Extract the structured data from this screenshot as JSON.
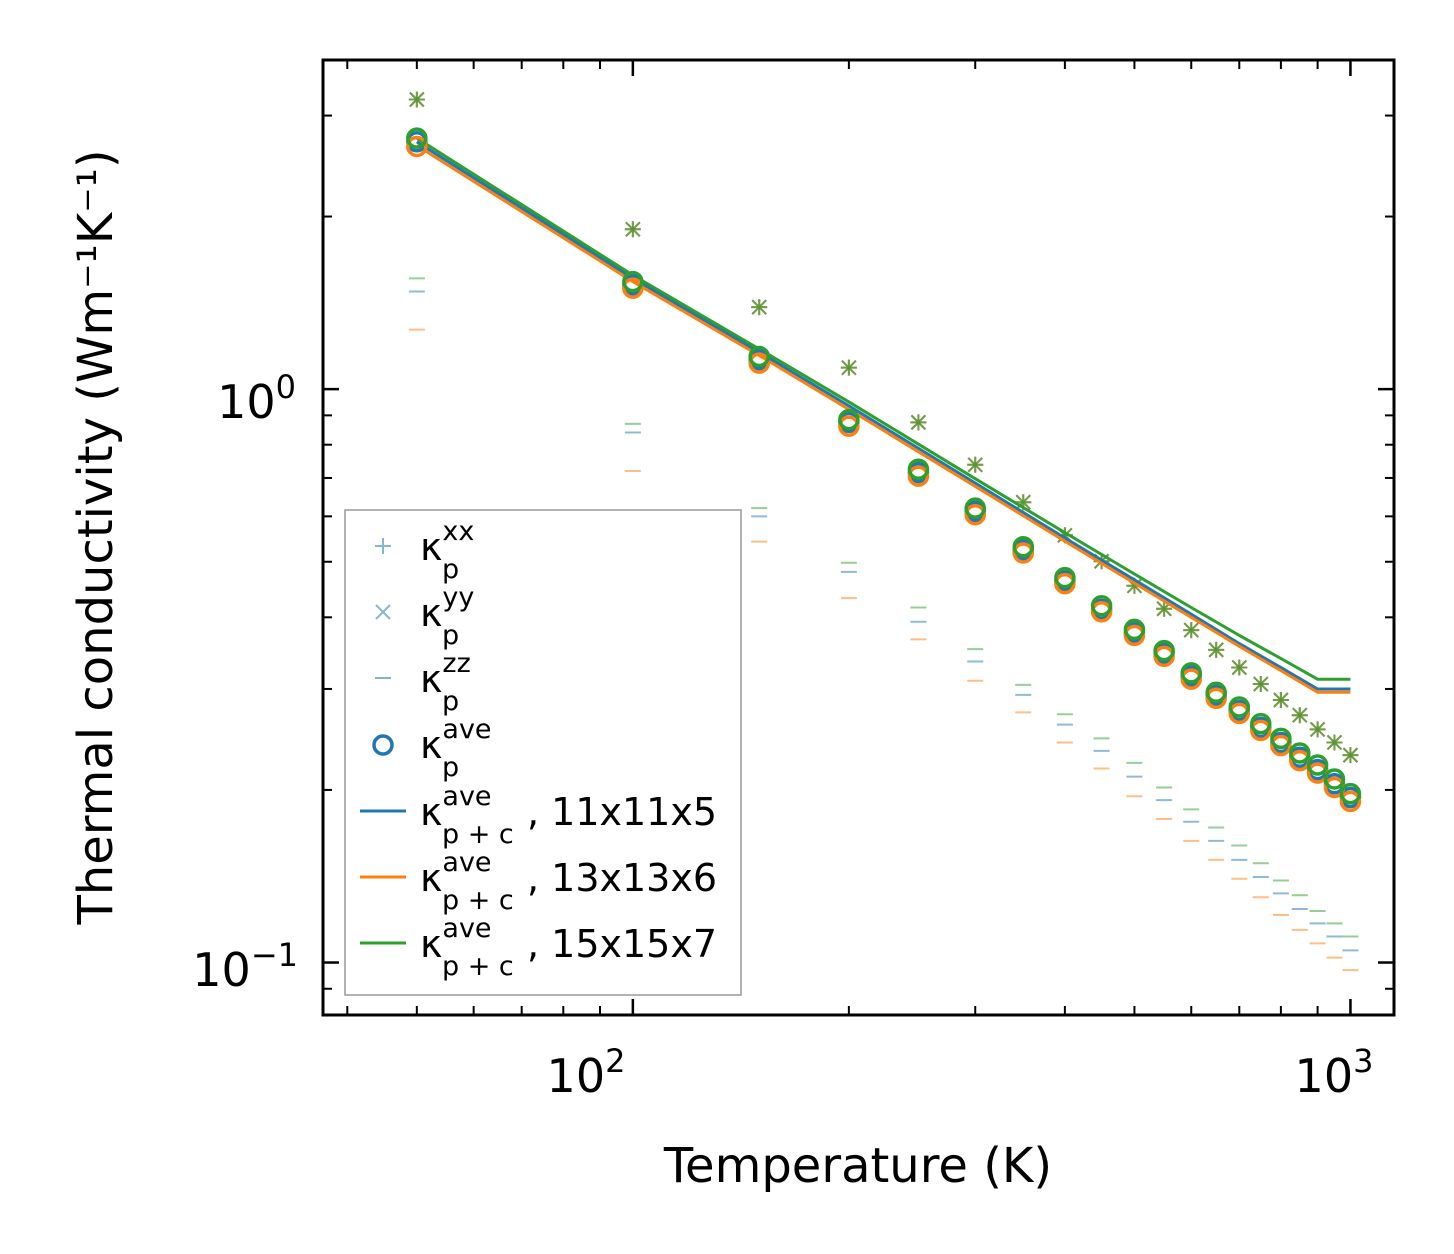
{
  "chart_data": {
    "type": "scatter",
    "title": "",
    "xlabel": "Temperature (K)",
    "ylabel": "Thermal conductivity (Wm⁻¹K⁻¹)",
    "xscale": "log",
    "yscale": "log",
    "xlim": [
      37,
      1150
    ],
    "ylim": [
      0.081,
      3.75
    ],
    "x_ticks": [
      {
        "base": "10",
        "exp": "2"
      },
      {
        "base": "10",
        "exp": "3"
      }
    ],
    "y_ticks": [
      {
        "base": "10",
        "exp": "0"
      },
      {
        "base": "10",
        "exp": "−1"
      }
    ],
    "legend_position": "lower-left",
    "colors": {
      "blue": "#1f77b4",
      "orange": "#ff7f0e",
      "green": "#2ca02c"
    },
    "x": [
      50,
      100,
      150,
      200,
      250,
      300,
      350,
      400,
      450,
      500,
      550,
      600,
      650,
      700,
      750,
      800,
      850,
      900,
      950,
      1000
    ],
    "kappa_p_xx": [
      3.2,
      1.9,
      1.39,
      1.09,
      0.875,
      0.738,
      0.635,
      0.556,
      0.501,
      0.454,
      0.414,
      0.38,
      0.351,
      0.327,
      0.306,
      0.287,
      0.27,
      0.255,
      0.242,
      0.23
    ],
    "kappa_p_zz": {
      "blue": [
        1.48,
        0.84,
        0.6,
        0.48,
        0.393,
        0.335,
        0.293,
        0.26,
        0.234,
        0.211,
        0.192,
        0.176,
        0.163,
        0.151,
        0.141,
        0.132,
        0.124,
        0.117,
        0.111,
        0.105
      ],
      "orange": [
        1.27,
        0.72,
        0.542,
        0.432,
        0.366,
        0.31,
        0.273,
        0.242,
        0.218,
        0.195,
        0.178,
        0.163,
        0.151,
        0.14,
        0.13,
        0.121,
        0.114,
        0.108,
        0.102,
        0.097
      ],
      "green": [
        1.56,
        0.87,
        0.62,
        0.498,
        0.416,
        0.352,
        0.305,
        0.271,
        0.246,
        0.223,
        0.202,
        0.185,
        0.172,
        0.16,
        0.149,
        0.139,
        0.131,
        0.123,
        0.117,
        0.111
      ]
    },
    "kappa_p_ave": {
      "blue": [
        2.7,
        1.52,
        1.125,
        0.875,
        0.715,
        0.612,
        0.524,
        0.463,
        0.413,
        0.376,
        0.346,
        0.316,
        0.292,
        0.275,
        0.257,
        0.242,
        0.228,
        0.217,
        0.205,
        0.194
      ],
      "orange": [
        2.65,
        1.5,
        1.11,
        0.862,
        0.705,
        0.604,
        0.518,
        0.458,
        0.409,
        0.372,
        0.342,
        0.312,
        0.289,
        0.272,
        0.254,
        0.239,
        0.225,
        0.214,
        0.202,
        0.191
      ],
      "green": [
        2.74,
        1.54,
        1.14,
        0.885,
        0.725,
        0.62,
        0.531,
        0.469,
        0.419,
        0.381,
        0.35,
        0.32,
        0.296,
        0.279,
        0.261,
        0.246,
        0.232,
        0.221,
        0.209,
        0.197
      ]
    },
    "series": [
      {
        "name": "κ_p+c^ave, 11x11x5",
        "label": ", 11x11x5",
        "color": "blue",
        "x": [
          50,
          100,
          150,
          200,
          300,
          400,
          500,
          600,
          700,
          800,
          900,
          1000
        ],
        "values": [
          2.7,
          1.56,
          1.16,
          0.935,
          0.686,
          0.55,
          0.465,
          0.405,
          0.36,
          0.327,
          0.3,
          0.3
        ]
      },
      {
        "name": "κ_p+c^ave, 13x13x6",
        "label": ", 13x13x6",
        "color": "orange",
        "x": [
          50,
          100,
          150,
          200,
          300,
          400,
          500,
          600,
          700,
          800,
          900,
          1000
        ],
        "values": [
          2.66,
          1.54,
          1.145,
          0.922,
          0.677,
          0.543,
          0.459,
          0.4,
          0.356,
          0.323,
          0.296,
          0.296
        ]
      },
      {
        "name": "κ_p+c^ave, 15x15x7",
        "label": ", 15x15x7",
        "color": "green",
        "x": [
          50,
          100,
          150,
          200,
          300,
          400,
          500,
          600,
          700,
          800,
          900,
          1000
        ],
        "values": [
          2.74,
          1.58,
          1.175,
          0.95,
          0.698,
          0.562,
          0.476,
          0.416,
          0.372,
          0.339,
          0.312,
          0.312
        ]
      }
    ],
    "legend": [
      {
        "symbol": "plus",
        "sup": "xx",
        "sub": "p",
        "label": ""
      },
      {
        "symbol": "cross",
        "sup": "yy",
        "sub": "p",
        "label": ""
      },
      {
        "symbol": "dash",
        "sup": "zz",
        "sub": "p",
        "label": ""
      },
      {
        "symbol": "circle",
        "sup": "ave",
        "sub": "p",
        "label": ""
      },
      {
        "symbol": "line-blue",
        "sup": "ave",
        "sub": "p + c",
        "label": ", 11x11x5"
      },
      {
        "symbol": "line-orange",
        "sup": "ave",
        "sub": "p + c",
        "label": ", 13x13x6"
      },
      {
        "symbol": "line-green",
        "sup": "ave",
        "sub": "p + c",
        "label": ", 15x15x7"
      }
    ]
  }
}
